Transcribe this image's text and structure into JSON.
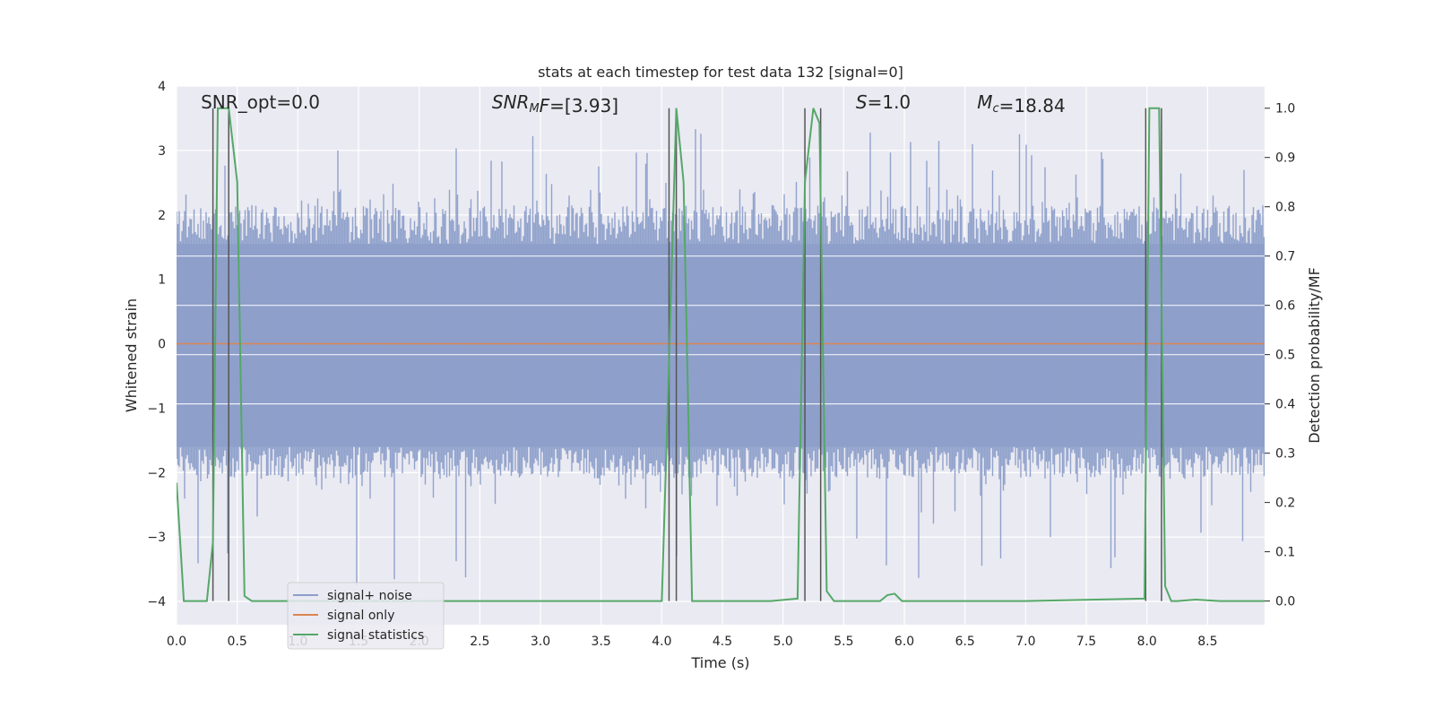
{
  "chart_data": {
    "type": "line",
    "title": "stats at each timestep for test data 132 [signal=0]",
    "xlabel": "Time (s)",
    "ylabel_left": "Whitened strain",
    "ylabel_right": "Detection probability/MF",
    "xlim": [
      0.0,
      8.97
    ],
    "ylim_left": [
      -4.36,
      4.0
    ],
    "ylim_right": [
      -0.048,
      1.045
    ],
    "x_ticks": [
      0.0,
      0.5,
      1.0,
      1.5,
      2.0,
      2.5,
      3.0,
      3.5,
      4.0,
      4.5,
      5.0,
      5.5,
      6.0,
      6.5,
      7.0,
      7.5,
      8.0,
      8.5
    ],
    "x_tick_labels": [
      "0.0",
      "0.5",
      "1.0",
      "1.5",
      "2.0",
      "2.5",
      "3.0",
      "3.5",
      "4.0",
      "4.5",
      "5.0",
      "5.5",
      "6.0",
      "6.5",
      "7.0",
      "7.5",
      "8.0",
      "8.5"
    ],
    "y_left_ticks": [
      4,
      3,
      2,
      1,
      0,
      -1,
      -2,
      -3,
      -4
    ],
    "y_left_tick_labels": [
      "4",
      "3",
      "2",
      "1",
      "0",
      "−1",
      "−2",
      "−3",
      "−4"
    ],
    "y_right_ticks": [
      1.0,
      0.9,
      0.8,
      0.7,
      0.6,
      0.5,
      0.4,
      0.3,
      0.2,
      0.1,
      0.0
    ],
    "y_right_tick_labels": [
      "1.0",
      "0.9",
      "0.8",
      "0.7",
      "0.6",
      "0.5",
      "0.4",
      "0.3",
      "0.2",
      "0.1",
      "0.0"
    ],
    "grid": true,
    "legend_position": "lower-left",
    "annotations": [
      {
        "x": 0.2,
        "y": 3.75,
        "parts": [
          {
            "t": "SNR_opt=0.0",
            "italic": false
          }
        ]
      },
      {
        "x": 2.6,
        "y": 3.75,
        "parts": [
          {
            "t": "SNR",
            "italic": true
          },
          {
            "t": "M",
            "italic": true,
            "sub": true
          },
          {
            "t": "F",
            "italic": true
          },
          {
            "t": "=[3.93]",
            "italic": false
          }
        ]
      },
      {
        "x": 5.6,
        "y": 3.75,
        "parts": [
          {
            "t": "S",
            "italic": true
          },
          {
            "t": "=1.0",
            "italic": false
          }
        ]
      },
      {
        "x": 6.6,
        "y": 3.75,
        "parts": [
          {
            "t": "M",
            "italic": true
          },
          {
            "t": "c",
            "italic": true,
            "sub": true
          },
          {
            "t": "=18.84",
            "italic": false
          }
        ]
      }
    ],
    "noise_band": {
      "low": -1.6,
      "high": 1.55,
      "spike_max": 3.6,
      "spike_min": -4.2
    },
    "series": [
      {
        "name": "signal+ noise",
        "color": "#8c9ec9",
        "kind": "noise"
      },
      {
        "name": "signal only",
        "color": "#dd8452",
        "kind": "flat",
        "value": 0.0
      },
      {
        "name": "signal statistics",
        "color": "#55a868",
        "kind": "prob",
        "x": [
          0.0,
          0.06,
          0.25,
          0.3,
          0.34,
          0.38,
          0.43,
          0.5,
          0.56,
          0.62,
          0.7,
          1.0,
          2.0,
          3.0,
          4.0,
          4.05,
          4.12,
          4.18,
          4.25,
          4.3,
          4.6,
          4.9,
          5.12,
          5.18,
          5.25,
          5.3,
          5.36,
          5.42,
          5.6,
          5.8,
          5.86,
          5.92,
          5.98,
          6.1,
          7.0,
          7.98,
          8.02,
          8.1,
          8.15,
          8.2,
          8.25,
          8.4,
          8.6,
          8.97
        ],
        "y": [
          0.24,
          0.0,
          0.0,
          0.12,
          1.0,
          1.0,
          1.0,
          0.85,
          0.01,
          0.0,
          0.0,
          0.0,
          0.0,
          0.0,
          0.0,
          0.4,
          1.0,
          0.85,
          0.0,
          0.0,
          0.0,
          0.0,
          0.005,
          0.85,
          1.0,
          0.97,
          0.02,
          0.0,
          0.0,
          0.0,
          0.012,
          0.015,
          0.0,
          0.0,
          0.0,
          0.005,
          1.0,
          1.0,
          0.03,
          0.0,
          0.0,
          0.003,
          0.0,
          0.0
        ]
      }
    ],
    "event_lines": [
      0.3,
      0.43,
      4.06,
      4.12,
      5.18,
      5.31,
      7.99,
      8.12
    ]
  }
}
